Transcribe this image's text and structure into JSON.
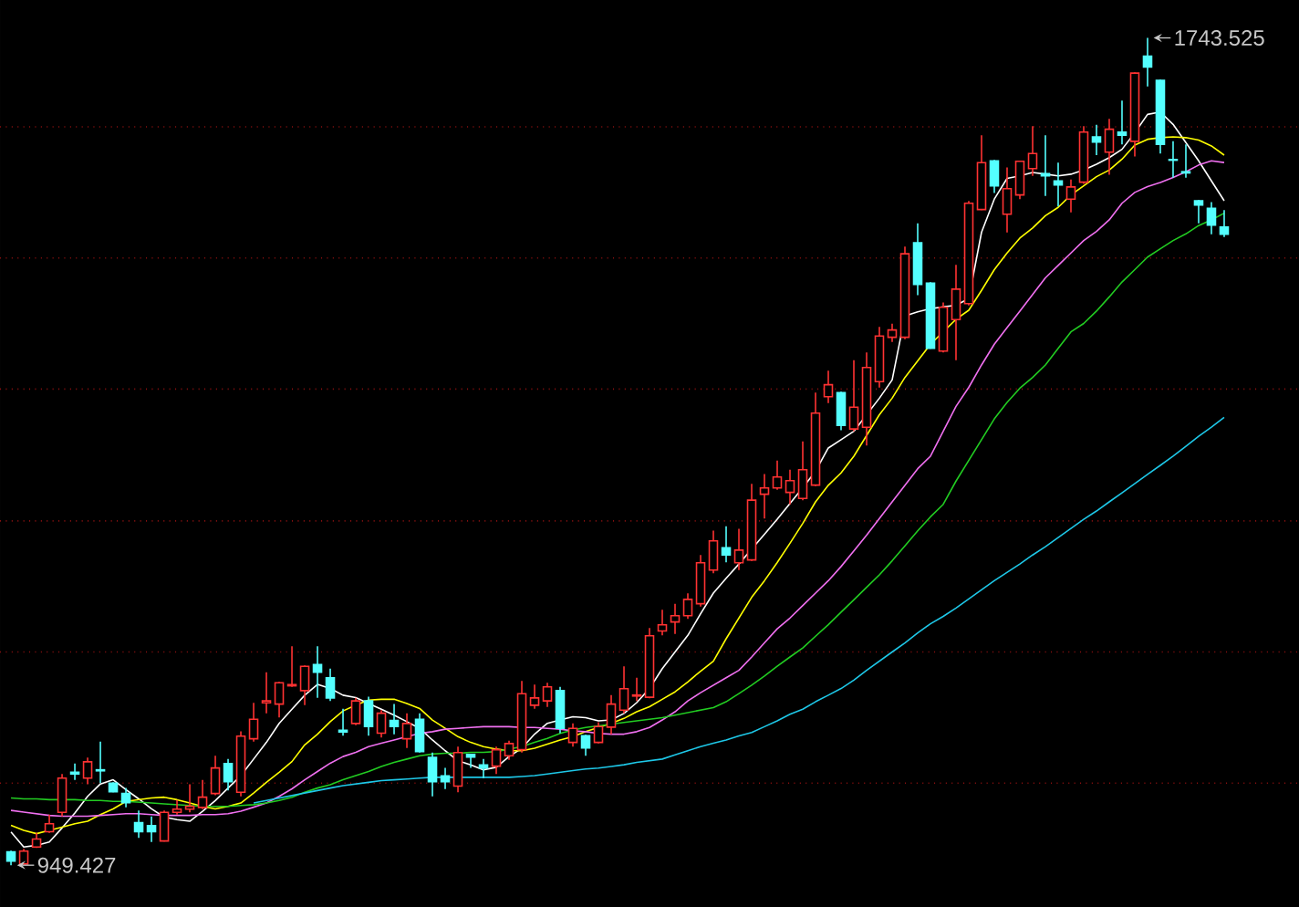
{
  "chart_data": {
    "type": "candlestick",
    "categories": [
      null,
      null,
      null,
      null,
      null,
      null,
      null,
      null,
      null,
      null,
      null,
      null,
      null,
      null,
      null,
      null,
      null,
      null,
      null,
      null,
      null,
      null,
      null,
      null,
      null,
      null,
      null,
      null,
      null,
      null,
      null,
      null,
      null,
      null,
      null,
      null,
      null,
      null,
      null,
      null,
      null,
      null,
      null,
      null,
      null,
      null,
      null,
      null,
      null,
      null,
      null,
      null,
      null,
      null,
      null,
      null,
      null,
      null,
      null,
      null,
      null,
      null,
      null,
      null,
      null,
      null,
      null,
      null,
      null,
      null,
      null,
      null,
      null,
      null,
      null,
      null,
      null,
      null,
      null,
      null,
      null,
      null,
      null,
      null,
      null,
      null,
      null,
      null,
      null,
      null,
      null,
      null,
      null,
      null,
      null,
      null
    ],
    "ohlc": [
      [
        962.2,
        963.4,
        949.427,
        953.4
      ],
      [
        950.6,
        965.2,
        950.3,
        962.9
      ],
      [
        966.9,
        980.4,
        966.0,
        974.5
      ],
      [
        981.5,
        997.9,
        980.4,
        989.2
      ],
      [
        1000.2,
        1037.0,
        996.2,
        1033.0
      ],
      [
        1038.7,
        1047.0,
        1031.2,
        1037.0
      ],
      [
        1033.0,
        1052.8,
        1027.0,
        1048.7
      ],
      [
        1041.0,
        1068.0,
        1028.2,
        1040.0
      ],
      [
        1028.2,
        1029.1,
        1019.5,
        1020.0
      ],
      [
        1018.2,
        1023.5,
        1004.9,
        1009.5
      ],
      [
        990.2,
        1002.0,
        975.7,
        981.5
      ],
      [
        987.4,
        996.2,
        971.6,
        981.5
      ],
      [
        972.7,
        1002.0,
        972.2,
        1000.2
      ],
      [
        1000.2,
        1011.9,
        997.9,
        1003.2
      ],
      [
        1003.2,
        1027.0,
        1000.2,
        1006.0
      ],
      [
        1004.9,
        1031.2,
        1003.2,
        1014.7
      ],
      [
        1018.2,
        1054.5,
        1016.5,
        1042.8
      ],
      [
        1047.0,
        1051.5,
        1021.2,
        1029.5
      ],
      [
        1019.5,
        1077.8,
        1015.4,
        1073.3
      ],
      [
        1070.8,
        1105.3,
        1068.0,
        1089.5
      ],
      [
        1105.3,
        1134.6,
        1095.3,
        1107.1
      ],
      [
        1104.1,
        1125.5,
        1091.3,
        1124.6
      ],
      [
        1121.6,
        1159.6,
        1120.6,
        1122.8
      ],
      [
        1117.0,
        1141.2,
        1103.0,
        1140.3
      ],
      [
        1142.1,
        1159.6,
        1110.0,
        1134.6
      ],
      [
        1129.3,
        1138.1,
        1107.1,
        1110.0
      ],
      [
        1079.0,
        1099.5,
        1073.8,
        1077.3
      ],
      [
        1085.5,
        1110.0,
        1083.8,
        1107.1
      ],
      [
        1107.1,
        1111.1,
        1073.8,
        1082.5
      ],
      [
        1076.1,
        1098.3,
        1072.0,
        1095.3
      ],
      [
        1088.3,
        1104.1,
        1075.0,
        1082.5
      ],
      [
        1070.8,
        1095.3,
        1062.0,
        1085.5
      ],
      [
        1089.5,
        1095.3,
        1057.5,
        1058.5
      ],
      [
        1052.8,
        1057.5,
        1015.4,
        1029.5
      ],
      [
        1035.2,
        1042.8,
        1022.5,
        1029.5
      ],
      [
        1025.3,
        1063.3,
        1019.5,
        1057.5
      ],
      [
        1055.7,
        1056.2,
        1042.8,
        1053.3
      ],
      [
        1045.7,
        1051.5,
        1033.0,
        1042.8
      ],
      [
        1044.5,
        1063.3,
        1037.0,
        1060.3
      ],
      [
        1054.5,
        1069.0,
        1050.5,
        1066.2
      ],
      [
        1060.3,
        1126.3,
        1057.5,
        1114.1
      ],
      [
        1103.0,
        1122.8,
        1099.5,
        1110.0
      ],
      [
        1107.1,
        1124.6,
        1101.3,
        1120.6
      ],
      [
        1117.0,
        1120.6,
        1076.1,
        1080.8
      ],
      [
        1067.3,
        1085.5,
        1063.3,
        1080.8
      ],
      [
        1073.8,
        1074.6,
        1054.5,
        1062.0
      ],
      [
        1067.3,
        1086.6,
        1066.2,
        1082.5
      ],
      [
        1082.0,
        1112.8,
        1075.0,
        1104.1
      ],
      [
        1098.3,
        1140.3,
        1095.3,
        1118.8
      ],
      [
        1111.8,
        1129.3,
        1107.1,
        1112.8
      ],
      [
        1110.6,
        1177.1,
        1109.7,
        1169.6
      ],
      [
        1174.2,
        1194.7,
        1170.1,
        1180.1
      ],
      [
        1182.9,
        1200.4,
        1171.4,
        1188.9
      ],
      [
        1188.9,
        1210.4,
        1185.9,
        1204.6
      ],
      [
        1200.4,
        1247.2,
        1197.6,
        1239.7
      ],
      [
        1232.7,
        1270.5,
        1229.7,
        1260.7
      ],
      [
        1254.2,
        1274.7,
        1240.2,
        1247.2
      ],
      [
        1239.7,
        1272.3,
        1232.7,
        1251.9
      ],
      [
        1242.5,
        1315.5,
        1241.4,
        1299.8
      ],
      [
        1305.5,
        1324.8,
        1282.2,
        1311.5
      ],
      [
        1311.5,
        1337.8,
        1309.7,
        1322.0
      ],
      [
        1307.3,
        1329.0,
        1295.7,
        1318.5
      ],
      [
        1301.5,
        1356.3,
        1299.8,
        1329.0
      ],
      [
        1314.3,
        1403.1,
        1313.2,
        1383.3
      ],
      [
        1399.1,
        1424.1,
        1393.1,
        1410.6
      ],
      [
        1403.1,
        1404.0,
        1366.9,
        1371.6
      ],
      [
        1368.1,
        1434.1,
        1365.8,
        1389.1
      ],
      [
        1369.8,
        1441.7,
        1352.3,
        1427.1
      ],
      [
        1413.6,
        1466.2,
        1407.8,
        1457.4
      ],
      [
        1456.2,
        1469.2,
        1451.6,
        1463.2
      ],
      [
        1456.2,
        1543.3,
        1454.4,
        1536.3
      ],
      [
        1546.8,
        1565.5,
        1496.5,
        1507.0
      ],
      [
        1508.2,
        1509.1,
        1445.2,
        1445.7
      ],
      [
        1442.9,
        1489.5,
        1441.7,
        1484.9
      ],
      [
        1473.2,
        1525.7,
        1434.1,
        1502.4
      ],
      [
        1488.4,
        1587.1,
        1486.7,
        1584.8
      ],
      [
        1578.8,
        1650.1,
        1578.3,
        1623.8
      ],
      [
        1625.6,
        1626.5,
        1594.6,
        1601.6
      ],
      [
        1574.3,
        1619.1,
        1556.7,
        1598.8
      ],
      [
        1592.8,
        1625.6,
        1588.8,
        1625.1
      ],
      [
        1618.1,
        1658.9,
        1611.1,
        1632.6
      ],
      [
        1613.3,
        1650.1,
        1591.8,
        1611.1
      ],
      [
        1606.3,
        1623.8,
        1581.8,
        1602.3
      ],
      [
        1588.8,
        1607.6,
        1576.0,
        1600.5
      ],
      [
        1605.1,
        1658.9,
        1603.4,
        1653.1
      ],
      [
        1648.4,
        1660.1,
        1630.9,
        1643.6
      ],
      [
        1633.8,
        1665.9,
        1612.1,
        1655.9
      ],
      [
        1653.1,
        1683.4,
        1641.4,
        1650.1
      ],
      [
        1644.3,
        1710.6,
        1629.6,
        1709.7
      ],
      [
        1726.0,
        1743.525,
        1696.9,
        1715.5
      ],
      [
        1702.7,
        1703.6,
        1632.6,
        1641.4
      ],
      [
        1626.8,
        1644.3,
        1609.3,
        1626.1
      ],
      [
        1615.1,
        1641.4,
        1609.3,
        1613.9
      ],
      [
        1587.1,
        1588.0,
        1565.5,
        1583.0
      ],
      [
        1580.0,
        1585.8,
        1555.0,
        1563.8
      ],
      [
        1562.0,
        1578.3,
        1552.5,
        1555.0
      ]
    ],
    "colors": [
      "#54ffff",
      "#ff3232",
      "#ff3232",
      "#ff3232",
      "#ff3232",
      "#54ffff",
      "#ff3232",
      "#54ffff",
      "#54ffff",
      "#54ffff",
      "#54ffff",
      "#54ffff",
      "#ff3232",
      "#ff3232",
      "#ff3232",
      "#ff3232",
      "#ff3232",
      "#54ffff",
      "#ff3232",
      "#ff3232",
      "#ff3232",
      "#ff3232",
      "#ff3232",
      "#ff3232",
      "#54ffff",
      "#54ffff",
      "#54ffff",
      "#ff3232",
      "#54ffff",
      "#ff3232",
      "#54ffff",
      "#ff3232",
      "#54ffff",
      "#54ffff",
      "#54ffff",
      "#ff3232",
      "#54ffff",
      "#54ffff",
      "#ff3232",
      "#ff3232",
      "#ff3232",
      "#ff3232",
      "#ff3232",
      "#54ffff",
      "#ff3232",
      "#54ffff",
      "#ff3232",
      "#ff3232",
      "#ff3232",
      "#ff3232",
      "#ff3232",
      "#ff3232",
      "#ff3232",
      "#ff3232",
      "#ff3232",
      "#ff3232",
      "#54ffff",
      "#ff3232",
      "#ff3232",
      "#ff3232",
      "#ff3232",
      "#ff3232",
      "#ff3232",
      "#ff3232",
      "#ff3232",
      "#54ffff",
      "#ff3232",
      "#ff3232",
      "#ff3232",
      "#ff3232",
      "#ff3232",
      "#54ffff",
      "#54ffff",
      "#ff3232",
      "#ff3232",
      "#ff3232",
      "#ff3232",
      "#54ffff",
      "#ff3232",
      "#ff3232",
      "#ff3232",
      "#54ffff",
      "#54ffff",
      "#ff3232",
      "#ff3232",
      "#54ffff",
      "#ff3232",
      "#54ffff",
      "#ff3232",
      "#54ffff",
      "#54ffff",
      "#54ffff",
      "#54ffff",
      "#54ffff",
      "#54ffff",
      "#54ffff"
    ],
    "series": [
      {
        "type": "line",
        "color": "#ffffff",
        "values": [
          981.3,
          966.9,
          968.5,
          971.7,
          985.2,
          999.6,
          1015.5,
          1027.4,
          1031.4,
          1021.9,
          1013.1,
          1003.5,
          995.6,
          993.2,
          991.6,
          1001.2,
          1011.5,
          1023.5,
          1035.4,
          1051.3,
          1067.3,
          1085.6,
          1099.1,
          1112.6,
          1123.0,
          1119.0,
          1112.6,
          1110.3,
          1104.7,
          1099.1,
          1093.5,
          1087.2,
          1080.8,
          1069.6,
          1059.3,
          1049.7,
          1045.8,
          1041.0,
          1043.4,
          1053.7,
          1061.7,
          1075.2,
          1085.6,
          1088.8,
          1091.9,
          1091.1,
          1088.0,
          1088.8,
          1095.1,
          1105.5,
          1119.0,
          1138.1,
          1154.1,
          1170.0,
          1190.7,
          1210.6,
          1224.9,
          1238.5,
          1252.8,
          1267.1,
          1281.5,
          1296.6,
          1311.7,
          1327.6,
          1349.9,
          1357.9,
          1365.9,
          1381.8,
          1397.7,
          1415.2,
          1476.6,
          1480.5,
          1483.7,
          1485.3,
          1486.9,
          1493.3,
          1557.0,
          1588.8,
          1608.7,
          1611.1,
          1614.3,
          1612.7,
          1611.1,
          1612.7,
          1616.7,
          1622.3,
          1628.6,
          1636.6,
          1652.5,
          1670.1,
          1672.4,
          1660.5,
          1643.0,
          1625.5,
          1606.3,
          1587.2
        ]
      },
      {
        "type": "line",
        "color": "#ffff00",
        "values": [
          987.6,
          982.8,
          979.7,
          982.8,
          986.0,
          989.2,
          991.6,
          998.0,
          1003.5,
          1010.7,
          1012.3,
          1013.9,
          1014.7,
          1012.3,
          1009.1,
          1005.9,
          1003.5,
          1005.9,
          1009.1,
          1018.7,
          1029.0,
          1038.6,
          1048.9,
          1064.9,
          1075.2,
          1087.2,
          1097.5,
          1103.1,
          1107.9,
          1108.7,
          1108.7,
          1104.7,
          1099.9,
          1088.8,
          1080.8,
          1072.8,
          1067.3,
          1063.3,
          1060.9,
          1059.3,
          1059.3,
          1061.7,
          1065.7,
          1069.6,
          1072.8,
          1077.6,
          1081.6,
          1085.6,
          1090.3,
          1096.7,
          1101.5,
          1108.7,
          1115.8,
          1125.4,
          1135.7,
          1145.3,
          1166.8,
          1186.7,
          1206.6,
          1222.5,
          1240.0,
          1258.4,
          1277.5,
          1298.2,
          1314.1,
          1326.0,
          1342.0,
          1361.9,
          1381.8,
          1397.7,
          1417.6,
          1433.6,
          1449.5,
          1461.4,
          1473.4,
          1482.1,
          1501.2,
          1521.1,
          1537.1,
          1551.4,
          1561.0,
          1572.9,
          1580.9,
          1592.8,
          1601.6,
          1610.3,
          1616.7,
          1627.1,
          1640.6,
          1646.2,
          1647.8,
          1648.6,
          1647.8,
          1645.4,
          1639.8,
          1631.0
        ]
      },
      {
        "type": "line",
        "color": "#f070f0",
        "values": [
          1002.0,
          1000.4,
          998.8,
          997.2,
          996.4,
          996.4,
          996.4,
          997.2,
          998.0,
          998.8,
          998.8,
          998.0,
          997.2,
          997.2,
          997.2,
          998.0,
          998.0,
          998.8,
          1001.2,
          1005.1,
          1009.1,
          1015.5,
          1022.7,
          1031.4,
          1039.4,
          1047.3,
          1053.7,
          1057.7,
          1063.3,
          1066.5,
          1069.6,
          1072.8,
          1076.0,
          1077.6,
          1080.0,
          1080.8,
          1081.6,
          1082.4,
          1082.4,
          1082.4,
          1081.6,
          1081.6,
          1080.8,
          1080.0,
          1078.4,
          1077.6,
          1076.0,
          1075.2,
          1075.2,
          1077.6,
          1081.6,
          1088.8,
          1096.7,
          1107.1,
          1115.0,
          1122.2,
          1129.4,
          1136.5,
          1149.3,
          1162.8,
          1176.3,
          1186.7,
          1198.6,
          1210.6,
          1222.5,
          1236.1,
          1251.2,
          1266.3,
          1282.3,
          1298.2,
          1314.1,
          1330.0,
          1342.0,
          1365.9,
          1389.8,
          1408.1,
          1429.6,
          1449.5,
          1465.4,
          1481.3,
          1497.3,
          1513.2,
          1525.1,
          1537.1,
          1549.0,
          1557.8,
          1568.9,
          1584.8,
          1595.2,
          1600.8,
          1604.8,
          1609.5,
          1615.1,
          1621.5,
          1625.5,
          1623.9
        ]
      },
      {
        "type": "line",
        "color": "#22cc22",
        "values": [
          1013.9,
          1013.1,
          1013.1,
          1012.3,
          1012.3,
          1012.3,
          1011.5,
          1011.5,
          1010.7,
          1010.7,
          1009.9,
          1009.1,
          1008.3,
          1007.5,
          1006.7,
          1005.9,
          1005.9,
          1005.9,
          1006.7,
          1007.5,
          1009.1,
          1011.5,
          1014.7,
          1019.5,
          1023.5,
          1026.6,
          1031.4,
          1035.4,
          1039.4,
          1044.2,
          1048.1,
          1051.3,
          1054.5,
          1056.1,
          1056.9,
          1056.9,
          1057.7,
          1057.7,
          1058.5,
          1060.9,
          1063.3,
          1067.3,
          1071.2,
          1076.0,
          1079.2,
          1081.6,
          1083.2,
          1084.8,
          1086.4,
          1088.0,
          1089.5,
          1091.1,
          1093.5,
          1095.9,
          1098.3,
          1100.7,
          1106.3,
          1114.2,
          1122.2,
          1131.0,
          1140.5,
          1149.3,
          1158.0,
          1169.2,
          1180.3,
          1192.3,
          1204.2,
          1216.2,
          1228.1,
          1241.6,
          1256.0,
          1270.3,
          1283.8,
          1295.8,
          1318.1,
          1338.0,
          1357.9,
          1377.8,
          1393.7,
          1407.3,
          1417.6,
          1429.6,
          1445.5,
          1461.4,
          1469.4,
          1481.3,
          1494.9,
          1509.2,
          1521.1,
          1533.1,
          1541.1,
          1549.0,
          1555.4,
          1563.4,
          1568.9,
          1575.3
        ]
      },
      {
        "type": "line",
        "color": "#1ec8e8",
        "values": [
          null,
          null,
          null,
          null,
          null,
          null,
          null,
          null,
          null,
          null,
          null,
          null,
          null,
          null,
          null,
          null,
          null,
          null,
          null,
          1009.1,
          1011.5,
          1013.9,
          1016.3,
          1018.7,
          1021.1,
          1023.5,
          1025.8,
          1027.4,
          1029.0,
          1030.6,
          1031.4,
          1032.2,
          1033.0,
          1033.8,
          1033.8,
          1033.8,
          1033.8,
          1033.8,
          1033.8,
          1033.8,
          1034.6,
          1035.4,
          1037.0,
          1038.6,
          1040.2,
          1041.8,
          1042.6,
          1044.2,
          1045.8,
          1048.1,
          1049.7,
          1051.3,
          1055.3,
          1059.3,
          1063.3,
          1066.5,
          1069.6,
          1073.6,
          1076.8,
          1082.4,
          1088.0,
          1094.3,
          1099.1,
          1106.3,
          1112.6,
          1119.0,
          1127.0,
          1136.5,
          1145.3,
          1154.1,
          1162.8,
          1172.4,
          1181.1,
          1188.3,
          1196.3,
          1205.0,
          1213.8,
          1222.5,
          1230.5,
          1238.5,
          1247.2,
          1255.2,
          1263.9,
          1272.7,
          1281.5,
          1289.4,
          1298.2,
          1306.9,
          1315.7,
          1324.5,
          1333.2,
          1342.0,
          1351.5,
          1361.1,
          1369.9,
          1379.4
        ]
      }
    ],
    "annotations": [
      "1743.525",
      "949.427"
    ],
    "ylim": [
      909.3,
      1779.9
    ],
    "yticks": [
      {
        "value": 1028.2,
        "label": null
      },
      {
        "value": 1154.1,
        "label": null
      },
      {
        "value": 1279.9,
        "label": null
      },
      {
        "value": 1406.5,
        "label": null
      },
      {
        "value": 1532.3,
        "label": null
      },
      {
        "value": 1658.1,
        "label": null
      }
    ],
    "grid": "y"
  }
}
